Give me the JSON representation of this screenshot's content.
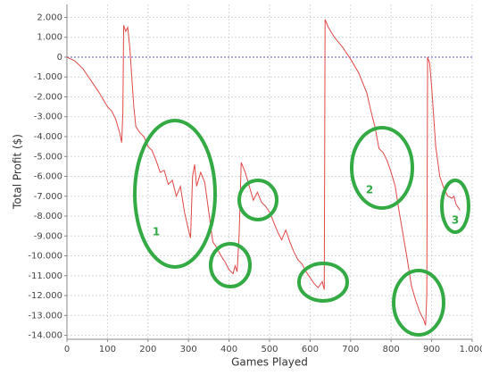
{
  "chart_data": {
    "type": "line",
    "xlabel": "Games Played",
    "ylabel": "Total Profit ($)",
    "x": [
      0,
      20,
      40,
      60,
      80,
      100,
      110,
      120,
      130,
      135,
      138,
      140,
      145,
      150,
      155,
      160,
      165,
      170,
      180,
      190,
      200,
      210,
      220,
      230,
      240,
      250,
      260,
      270,
      280,
      290,
      300,
      305,
      310,
      315,
      320,
      330,
      340,
      350,
      360,
      370,
      380,
      390,
      400,
      410,
      415,
      420,
      425,
      430,
      440,
      450,
      460,
      470,
      480,
      490,
      500,
      510,
      520,
      530,
      540,
      550,
      560,
      570,
      580,
      590,
      600,
      610,
      620,
      630,
      635,
      637,
      645,
      660,
      680,
      700,
      720,
      740,
      750,
      760,
      770,
      780,
      790,
      800,
      810,
      820,
      830,
      840,
      850,
      860,
      870,
      880,
      885,
      888,
      890,
      895,
      900,
      910,
      920,
      930,
      940,
      950,
      955,
      960,
      970
    ],
    "values": [
      0,
      -200,
      -600,
      -1200,
      -1800,
      -2500,
      -2700,
      -3100,
      -3800,
      -4300,
      -2800,
      1600,
      1300,
      1500,
      500,
      -1000,
      -2500,
      -3500,
      -3800,
      -4000,
      -4500,
      -4700,
      -5200,
      -5800,
      -5700,
      -6400,
      -6200,
      -7000,
      -6500,
      -7800,
      -8700,
      -9100,
      -6000,
      -5400,
      -6500,
      -5800,
      -6300,
      -7800,
      -9300,
      -9600,
      -10000,
      -10300,
      -10700,
      -10900,
      -10500,
      -10800,
      -8900,
      -5300,
      -5800,
      -6500,
      -7200,
      -6800,
      -7300,
      -7500,
      -7800,
      -8300,
      -8800,
      -9200,
      -8700,
      -9300,
      -9800,
      -10200,
      -10400,
      -10800,
      -11100,
      -11400,
      -11600,
      -11300,
      -11700,
      1900,
      1500,
      1000,
      500,
      -100,
      -800,
      -1800,
      -2700,
      -3500,
      -4600,
      -4800,
      -5200,
      -5800,
      -6500,
      -7800,
      -9000,
      -10200,
      -11500,
      -12200,
      -12800,
      -13200,
      -13500,
      -12000,
      0,
      -300,
      -1500,
      -4500,
      -6000,
      -6600,
      -7000,
      -7100,
      -7000,
      -7400,
      -7700
    ],
    "color": "#e04848",
    "xlim": [
      0,
      1000
    ],
    "ylim": [
      -14200,
      2650
    ],
    "xticks": [
      0,
      100,
      200,
      300,
      400,
      500,
      600,
      700,
      800,
      900,
      {
        "value": 1000,
        "label": "1.000"
      }
    ],
    "yticks": [
      {
        "value": 2000,
        "label": "2.000"
      },
      {
        "value": 1000,
        "label": "1.000"
      },
      0,
      {
        "value": -1000,
        "label": "-1.000"
      },
      {
        "value": -2000,
        "label": "-2.000"
      },
      {
        "value": -3000,
        "label": "-3.000"
      },
      {
        "value": -4000,
        "label": "-4.000"
      },
      {
        "value": -5000,
        "label": "-5.000"
      },
      {
        "value": -6000,
        "label": "-6.000"
      },
      {
        "value": -7000,
        "label": "-7.000"
      },
      {
        "value": -8000,
        "label": "-8.000"
      },
      {
        "value": -9000,
        "label": "-9.000"
      },
      {
        "value": -10000,
        "label": "-10.000"
      },
      {
        "value": -11000,
        "label": "-11.000"
      },
      {
        "value": -12000,
        "label": "-12.000"
      },
      {
        "value": -13000,
        "label": "-13.000"
      },
      {
        "value": -14000,
        "label": "-14.000"
      }
    ],
    "grid": true,
    "zero_line": true,
    "annotations": [
      "1",
      "2",
      "3"
    ]
  }
}
